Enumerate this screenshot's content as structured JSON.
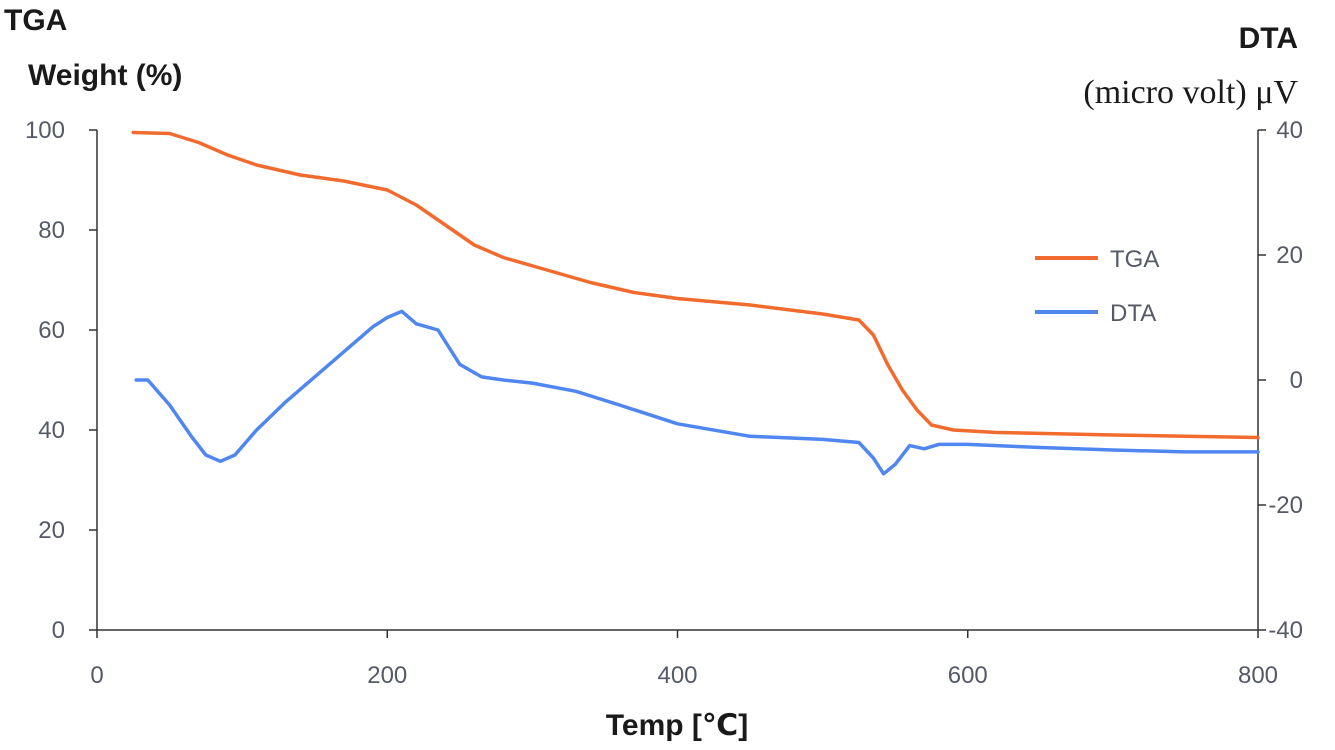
{
  "chart_data": {
    "type": "line",
    "xlabel": "Temp [℃]",
    "ylabel_left": [
      "TGA",
      "Weight (%)"
    ],
    "ylabel_right": [
      "DTA",
      "(micro volt) μV"
    ],
    "xlim": [
      0,
      800
    ],
    "ylim_left": [
      0,
      100
    ],
    "ylim_right": [
      -40,
      40
    ],
    "x_ticks": [
      "0",
      "200",
      "400",
      "600",
      "800"
    ],
    "y_ticks_left": [
      "0",
      "20",
      "40",
      "60",
      "80",
      "100"
    ],
    "y_ticks_right": [
      "-40",
      "-20",
      "0",
      "20",
      "40"
    ],
    "grid": false,
    "legend_position": "right",
    "colors": {
      "TGA": "#f26b2e",
      "DTA": "#4f86f0",
      "axis": "#333333"
    },
    "series": [
      {
        "name": "TGA",
        "axis": "left",
        "color": "#f26b2e",
        "x": [
          25,
          50,
          70,
          90,
          110,
          140,
          170,
          200,
          220,
          240,
          260,
          280,
          310,
          340,
          370,
          400,
          450,
          500,
          525,
          535,
          545,
          555,
          565,
          575,
          590,
          620,
          700,
          800
        ],
        "y": [
          99.5,
          99.3,
          97.5,
          95,
          93,
          91,
          89.8,
          88,
          85,
          81,
          77,
          74.5,
          72,
          69.5,
          67.5,
          66.3,
          65,
          63.2,
          62,
          59,
          53,
          48,
          44,
          41,
          40,
          39.5,
          39,
          38.5
        ]
      },
      {
        "name": "DTA",
        "axis": "right",
        "color": "#4f86f0",
        "x": [
          27,
          35,
          50,
          65,
          75,
          85,
          95,
          110,
          130,
          150,
          170,
          190,
          200,
          210,
          220,
          235,
          250,
          265,
          280,
          300,
          330,
          360,
          400,
          450,
          500,
          525,
          535,
          542,
          550,
          560,
          570,
          580,
          600,
          650,
          700,
          750,
          800
        ],
        "y": [
          0,
          0,
          -4,
          -9,
          -12,
          -13,
          -12,
          -8,
          -3.5,
          0.5,
          4.5,
          8.5,
          10,
          11,
          9,
          8,
          2.5,
          0.5,
          0,
          -0.5,
          -1.8,
          -4,
          -7,
          -9,
          -9.5,
          -10,
          -12.5,
          -15,
          -13.5,
          -10.5,
          -11,
          -10.3,
          -10.3,
          -10.8,
          -11.2,
          -11.5,
          -11.5
        ]
      }
    ]
  }
}
